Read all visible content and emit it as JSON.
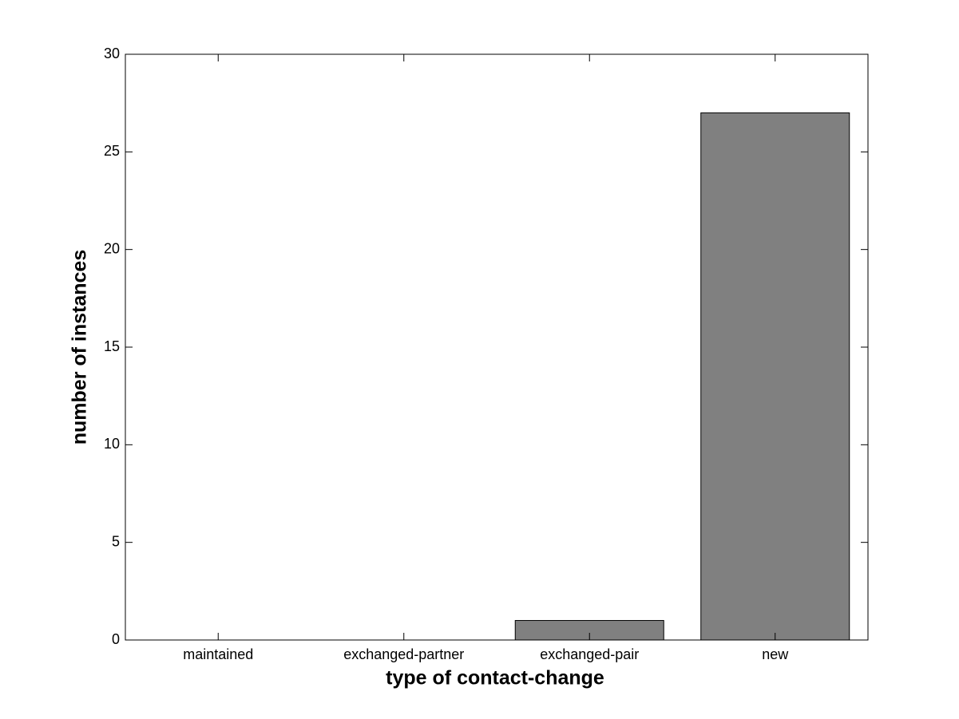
{
  "chart_data": {
    "type": "bar",
    "x_label": "type of contact-change",
    "y_label": "number of instances",
    "categories": [
      "maintained",
      "exchanged-partner",
      "exchanged-pair",
      "new"
    ],
    "values": [
      0,
      0,
      1,
      27
    ],
    "color": "#808080",
    "ylim": [
      0,
      30
    ],
    "yticks": [
      0,
      5,
      10,
      15,
      20,
      25,
      30
    ],
    "grid": false
  }
}
